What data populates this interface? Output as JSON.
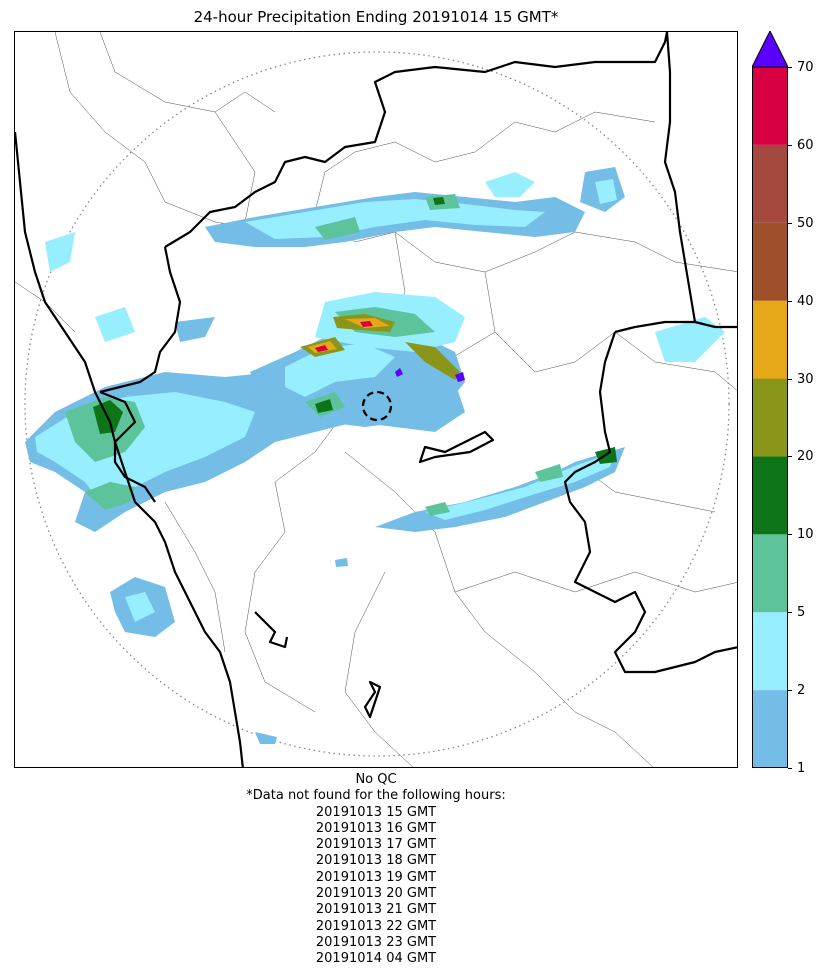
{
  "title": "24-hour Precipitation Ending 20191014 15 GMT*",
  "map": {
    "features": [
      "precipitation-field",
      "state-borders",
      "district-borders",
      "coastline",
      "radar-range-ring",
      "radar-site-marker"
    ]
  },
  "legend": {
    "levels": [
      {
        "from": 1,
        "to": 2,
        "color": "#74bde6"
      },
      {
        "from": 2,
        "to": 5,
        "color": "#96eeff"
      },
      {
        "from": 5,
        "to": 10,
        "color": "#5cc39a"
      },
      {
        "from": 10,
        "to": 20,
        "color": "#0e7418"
      },
      {
        "from": 20,
        "to": 30,
        "color": "#8a9619"
      },
      {
        "from": 30,
        "to": 40,
        "color": "#e6a718"
      },
      {
        "from": 40,
        "to": 50,
        "color": "#9d502a"
      },
      {
        "from": 50,
        "to": 60,
        "color": "#a5493f"
      },
      {
        "from": 60,
        "to": 70,
        "color": "#d60042"
      }
    ],
    "over_color": "#5a00ff",
    "ticks": [
      "1",
      "2",
      "5",
      "10",
      "20",
      "30",
      "40",
      "50",
      "60",
      "70"
    ]
  },
  "footer": {
    "qc": "No QC",
    "note": "*Data not found for the following hours:",
    "hours": [
      "20191013 15 GMT",
      "20191013 16 GMT",
      "20191013 17 GMT",
      "20191013 18 GMT",
      "20191013 19 GMT",
      "20191013 20 GMT",
      "20191013 21 GMT",
      "20191013 22 GMT",
      "20191013 23 GMT",
      "20191014 04 GMT"
    ]
  }
}
